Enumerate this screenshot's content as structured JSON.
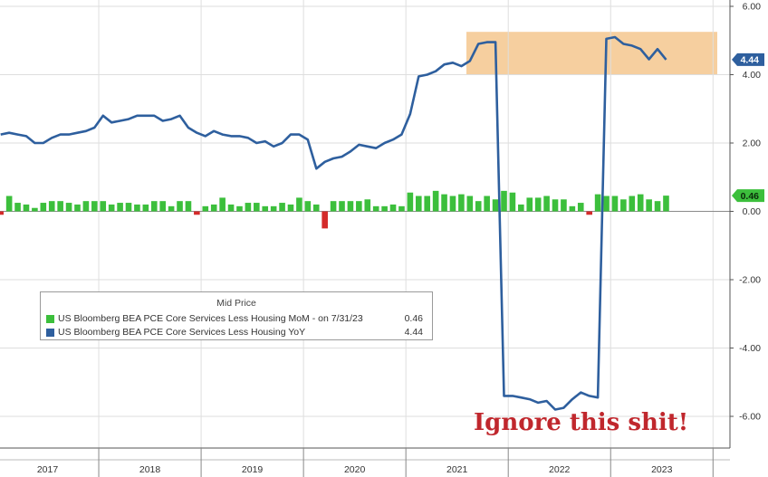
{
  "chart_data": {
    "type": "line",
    "legend": {
      "title": "Mid Price",
      "entries": [
        {
          "name": "US Bloomberg BEA PCE Core Services Less Housing MoM -   on 7/31/23",
          "value": "0.46",
          "color": "#3cbf3c"
        },
        {
          "name": "US Bloomberg BEA PCE Core Services Less Housing YoY",
          "value": "4.44",
          "color": "#2e5f9e"
        }
      ]
    },
    "y_ticks": [
      "6.00",
      "4.00",
      "2.00",
      "0.00",
      "-2.00",
      "-4.00",
      "-6.00"
    ],
    "ylim": [
      -6.9,
      6.2
    ],
    "x_tick_labels": [
      "2017",
      "2018",
      "2019",
      "2020",
      "2021",
      "2022",
      "2023"
    ],
    "x_range": [
      "2017-01",
      "2023-07"
    ],
    "grid": true,
    "last_value_labels": {
      "yoy": "4.44",
      "mom": "0.46"
    },
    "annotation": "Ignore this shit!",
    "highlight_band": {
      "y_from": 4.1,
      "y_to": 5.2,
      "color": "#f6cf9f"
    },
    "series": [
      {
        "name": "US Bloomberg BEA PCE Core Services Less Housing YoY",
        "kind": "line",
        "color": "#2e5f9e",
        "x": [
          "2017-01",
          "2017-02",
          "2017-03",
          "2017-04",
          "2017-05",
          "2017-06",
          "2017-07",
          "2017-08",
          "2017-09",
          "2017-10",
          "2017-11",
          "2017-12",
          "2018-01",
          "2018-02",
          "2018-03",
          "2018-04",
          "2018-05",
          "2018-06",
          "2018-07",
          "2018-08",
          "2018-09",
          "2018-10",
          "2018-11",
          "2018-12",
          "2019-01",
          "2019-02",
          "2019-03",
          "2019-04",
          "2019-05",
          "2019-06",
          "2019-07",
          "2019-08",
          "2019-09",
          "2019-10",
          "2019-11",
          "2019-12",
          "2020-01",
          "2020-02",
          "2020-03",
          "2020-04",
          "2020-05",
          "2020-06",
          "2020-07",
          "2020-08",
          "2020-09",
          "2020-10",
          "2020-11",
          "2020-12",
          "2021-01",
          "2021-02",
          "2021-03",
          "2021-04",
          "2021-05",
          "2021-06",
          "2021-07",
          "2021-08",
          "2021-09",
          "2021-10",
          "2021-11",
          "2021-12",
          "2022-01",
          "2022-02",
          "2022-03",
          "2022-04",
          "2022-05",
          "2022-06",
          "2022-07",
          "2022-08",
          "2022-09",
          "2022-10",
          "2022-11",
          "2022-12",
          "2023-01",
          "2023-02",
          "2023-03",
          "2023-04",
          "2023-05",
          "2023-06",
          "2023-07"
        ],
        "values": [
          2.25,
          2.3,
          2.25,
          2.2,
          2.0,
          2.0,
          2.15,
          2.25,
          2.25,
          2.3,
          2.35,
          2.45,
          2.8,
          2.6,
          2.65,
          2.7,
          2.8,
          2.8,
          2.8,
          2.65,
          2.7,
          2.8,
          2.45,
          2.3,
          2.2,
          2.35,
          2.25,
          2.2,
          2.2,
          2.15,
          2.0,
          2.05,
          1.9,
          2.0,
          2.25,
          2.25,
          2.1,
          1.25,
          1.45,
          1.55,
          1.6,
          1.75,
          1.95,
          1.9,
          1.85,
          2.0,
          2.1,
          2.25,
          2.85,
          3.95,
          4.0,
          4.1,
          4.3,
          4.35,
          4.25,
          4.4,
          4.9,
          4.95,
          4.95,
          -5.4,
          -5.4,
          -5.45,
          -5.5,
          -5.6,
          -5.55,
          -5.8,
          -5.75,
          -5.5,
          -5.3,
          -5.4,
          -5.45,
          5.05,
          5.1,
          4.9,
          4.85,
          4.75,
          4.45,
          4.75,
          4.44
        ]
      },
      {
        "name": "US Bloomberg BEA PCE Core Services Less Housing MoM",
        "kind": "bar",
        "color": "#3cbf3c",
        "negative_color": "#d42a2a",
        "x": [
          "2017-01",
          "2017-02",
          "2017-03",
          "2017-04",
          "2017-05",
          "2017-06",
          "2017-07",
          "2017-08",
          "2017-09",
          "2017-10",
          "2017-11",
          "2017-12",
          "2018-01",
          "2018-02",
          "2018-03",
          "2018-04",
          "2018-05",
          "2018-06",
          "2018-07",
          "2018-08",
          "2018-09",
          "2018-10",
          "2018-11",
          "2018-12",
          "2019-01",
          "2019-02",
          "2019-03",
          "2019-04",
          "2019-05",
          "2019-06",
          "2019-07",
          "2019-08",
          "2019-09",
          "2019-10",
          "2019-11",
          "2019-12",
          "2020-01",
          "2020-02",
          "2020-03",
          "2020-04",
          "2020-05",
          "2020-06",
          "2020-07",
          "2020-08",
          "2020-09",
          "2020-10",
          "2020-11",
          "2020-12",
          "2021-01",
          "2021-02",
          "2021-03",
          "2021-04",
          "2021-05",
          "2021-06",
          "2021-07",
          "2021-08",
          "2021-09",
          "2021-10",
          "2021-11",
          "2021-12",
          "2022-01",
          "2022-02",
          "2022-03",
          "2022-04",
          "2022-05",
          "2022-06",
          "2022-07",
          "2022-08",
          "2022-09",
          "2022-10",
          "2022-11",
          "2022-12",
          "2023-01",
          "2023-02",
          "2023-03",
          "2023-04",
          "2023-05",
          "2023-06",
          "2023-07"
        ],
        "values": [
          -0.1,
          0.45,
          0.25,
          0.2,
          0.1,
          0.25,
          0.3,
          0.3,
          0.25,
          0.2,
          0.3,
          0.3,
          0.3,
          0.2,
          0.25,
          0.25,
          0.2,
          0.2,
          0.3,
          0.3,
          0.15,
          0.3,
          0.3,
          -0.1,
          0.15,
          0.2,
          0.4,
          0.2,
          0.15,
          0.25,
          0.25,
          0.15,
          0.15,
          0.25,
          0.2,
          0.4,
          0.3,
          0.2,
          -0.5,
          0.3,
          0.3,
          0.3,
          0.3,
          0.35,
          0.15,
          0.15,
          0.2,
          0.15,
          0.55,
          0.45,
          0.45,
          0.6,
          0.5,
          0.45,
          0.5,
          0.45,
          0.3,
          0.45,
          0.35,
          0.6,
          0.55,
          0.2,
          0.4,
          0.4,
          0.45,
          0.35,
          0.35,
          0.15,
          0.25,
          -0.1,
          0.5,
          0.45,
          0.45,
          0.35,
          0.45,
          0.5,
          0.35,
          0.3,
          0.46
        ]
      }
    ]
  }
}
